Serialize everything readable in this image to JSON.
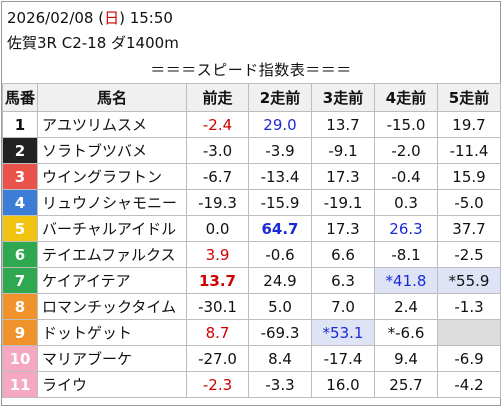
{
  "header": {
    "date_pre": "2026/02/08 (",
    "weekday": "日",
    "date_post": ") 15:50",
    "race": "佐賀3R C2-18 ダ1400m"
  },
  "banner": "＝＝＝スピード指数表＝＝＝",
  "columns": [
    "馬番",
    "馬名",
    "前走",
    "2走前",
    "3走前",
    "4走前",
    "5走前"
  ],
  "rows": [
    {
      "num": "1",
      "name": "アユツリムスメ",
      "v": [
        "-2.4",
        "29.0",
        "13.7",
        "-15.0",
        "19.7"
      ]
    },
    {
      "num": "2",
      "name": "ソラトブツバメ",
      "v": [
        "-3.0",
        "-3.9",
        "-9.1",
        "-2.0",
        "-11.4"
      ]
    },
    {
      "num": "3",
      "name": "ウイングラフトン",
      "v": [
        "-6.7",
        "-13.4",
        "17.3",
        "-0.4",
        "15.9"
      ]
    },
    {
      "num": "4",
      "name": "リュウノシャモニー",
      "v": [
        "-19.3",
        "-15.9",
        "-19.1",
        "0.3",
        "-5.0"
      ]
    },
    {
      "num": "5",
      "name": "バーチャルアイドル",
      "v": [
        "0.0",
        "64.7",
        "17.3",
        "26.3",
        "37.7"
      ]
    },
    {
      "num": "6",
      "name": "テイエムファルクス",
      "v": [
        "3.9",
        "-0.6",
        "6.6",
        "-8.1",
        "-2.5"
      ]
    },
    {
      "num": "7",
      "name": "ケイアイテア",
      "v": [
        "13.7",
        "24.9",
        "6.3",
        "*41.8",
        "*55.9"
      ]
    },
    {
      "num": "8",
      "name": "ロマンチックタイム",
      "v": [
        "-30.1",
        "5.0",
        "7.0",
        "2.4",
        "-1.3"
      ]
    },
    {
      "num": "9",
      "name": "ドットゲット",
      "v": [
        "8.7",
        "-69.3",
        "*53.1",
        "*-6.6",
        ""
      ]
    },
    {
      "num": "10",
      "name": "マリアブーケ",
      "v": [
        "-27.0",
        "8.4",
        "-17.4",
        "9.4",
        "-6.9"
      ]
    },
    {
      "num": "11",
      "name": "ライウ",
      "v": [
        "-2.3",
        "-3.3",
        "16.0",
        "25.7",
        "-4.2"
      ]
    }
  ],
  "colors": {
    "waku_1": "#ffffff",
    "waku_2": "#222222",
    "waku_3": "#e8524a",
    "waku_4": "#3c7ed6",
    "waku_5": "#f1c40f",
    "waku_6": "#2fa84f",
    "waku_7": "#f0932b",
    "waku_8": "#f5a8c0",
    "value_red": "#d00000",
    "value_blue": "#1a2bd6",
    "highlight": "#dfe3f6"
  }
}
